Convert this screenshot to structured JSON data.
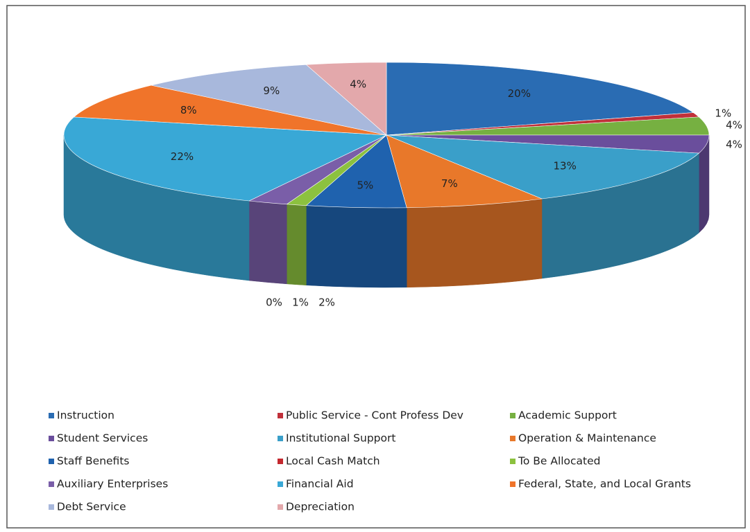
{
  "chart_data": {
    "type": "pie3d",
    "categories": [
      "Instruction",
      "Public Service - Cont Profess Dev",
      "Academic Support",
      "Student Services",
      "Institutional Support",
      "Operation & Maintenance",
      "Staff Benefits",
      "Local Cash Match",
      "To Be Allocated",
      "Auxiliary Enterprises",
      "Financial Aid",
      "Federal, State, and Local Grants",
      "Debt Service",
      "Depreciation"
    ],
    "values": [
      20,
      1,
      4,
      4,
      13,
      7,
      5,
      0,
      1,
      2,
      22,
      8,
      9,
      4
    ],
    "value_labels": [
      "20%",
      "1%",
      "4%",
      "4%",
      "13%",
      "7%",
      "5%",
      "0%",
      "1%",
      "2%",
      "22%",
      "8%",
      "9%",
      "4%"
    ],
    "colors": [
      "#2a6cb3",
      "#c0303a",
      "#76b041",
      "#6a4e9c",
      "#3a9fc9",
      "#e8782a",
      "#1f62ae",
      "#c4282e",
      "#8cc13f",
      "#7a5ea8",
      "#39a8d6",
      "#f0742a",
      "#a8b8dc",
      "#e3a8ab"
    ],
    "legend": "bottom"
  }
}
